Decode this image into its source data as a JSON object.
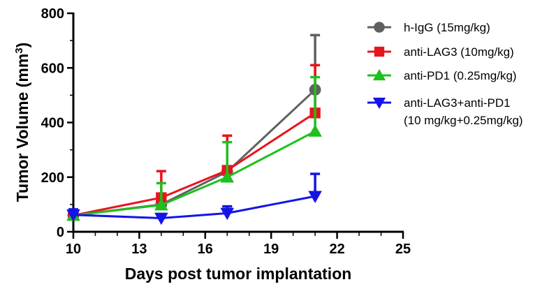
{
  "chart_data": {
    "type": "line",
    "xlabel": "Days post tumor implantation",
    "ylabel_prefix": "Tumor Volume (mm",
    "ylabel_sup": "3",
    "ylabel_suffix": ")",
    "xlim": [
      10,
      25
    ],
    "ylim": [
      0,
      800
    ],
    "xticks": [
      10,
      13,
      16,
      19,
      22,
      25
    ],
    "yticks": [
      0,
      200,
      400,
      600,
      800
    ],
    "legend_position": "top-right",
    "series": [
      {
        "name": "h-IgG (15mg/kg)",
        "color": "#606060",
        "marker": "circle",
        "x": [
          10,
          14,
          17,
          21
        ],
        "y": [
          60,
          100,
          220,
          520
        ],
        "err": [
          15,
          20,
          0,
          200
        ]
      },
      {
        "name": "anti-LAG3 (10mg/kg)",
        "color": "#e8141c",
        "marker": "square",
        "x": [
          10,
          14,
          17,
          21
        ],
        "y": [
          60,
          125,
          225,
          435
        ],
        "err": [
          15,
          97,
          127,
          175
        ]
      },
      {
        "name": "anti-PD1 (0.25mg/kg)",
        "color": "#1ec01e",
        "marker": "triangle-up",
        "x": [
          10,
          14,
          17,
          21
        ],
        "y": [
          60,
          98,
          200,
          368
        ],
        "err": [
          15,
          80,
          128,
          198
        ]
      },
      {
        "name": "anti-LAG3+anti-PD1",
        "name_line2": "(10 mg/kg+0.25mg/kg)",
        "color": "#1414e8",
        "marker": "triangle-down",
        "x": [
          10,
          14,
          17,
          21
        ],
        "y": [
          62,
          50,
          68,
          130
        ],
        "err": [
          20,
          15,
          25,
          82
        ]
      }
    ]
  }
}
